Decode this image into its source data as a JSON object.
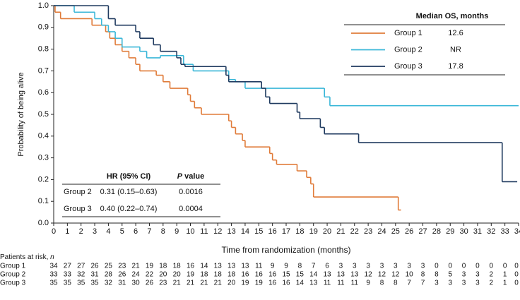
{
  "chart_data": {
    "type": "step",
    "ylabel": "Probability of being alive",
    "xlabel": "Time from randomization (months)",
    "xlim": [
      0,
      34
    ],
    "ylim": [
      0,
      1
    ],
    "xticks": [
      0,
      1,
      2,
      3,
      4,
      5,
      6,
      7,
      8,
      9,
      10,
      11,
      12,
      13,
      14,
      15,
      16,
      17,
      18,
      19,
      20,
      21,
      22,
      23,
      24,
      25,
      26,
      27,
      28,
      29,
      30,
      31,
      32,
      33,
      34
    ],
    "yticks": [
      {
        "value": 0,
        "label": "0.0"
      },
      0.1,
      0.2,
      0.3,
      0.4,
      0.5,
      0.6,
      0.7,
      0.8,
      0.9,
      {
        "value": 1,
        "label": "1.0"
      }
    ],
    "legend_title": "Median OS, months",
    "series": [
      {
        "name": "Group 1",
        "color": "#e07b39",
        "median": "12.6",
        "x": [
          0,
          0.1,
          0.5,
          2.8,
          3.8,
          4.1,
          4.5,
          5.0,
          5.5,
          6.0,
          6.3,
          7.5,
          8.0,
          8.5,
          9.8,
          10.0,
          10.3,
          10.8,
          12.8,
          13.0,
          13.3,
          13.8,
          14.0,
          15.8,
          16.0,
          16.3,
          17.8,
          18.5,
          18.8,
          19.0,
          25.2,
          25.4
        ],
        "values": [
          1.0,
          0.97,
          0.94,
          0.91,
          0.88,
          0.85,
          0.82,
          0.79,
          0.76,
          0.73,
          0.7,
          0.68,
          0.65,
          0.62,
          0.59,
          0.56,
          0.53,
          0.5,
          0.47,
          0.44,
          0.41,
          0.38,
          0.35,
          0.32,
          0.29,
          0.27,
          0.24,
          0.21,
          0.18,
          0.12,
          0.06,
          0.06
        ]
      },
      {
        "name": "Group 2",
        "color": "#3ab7d8",
        "median": "NR",
        "x": [
          0,
          1.5,
          3.0,
          3.5,
          4.0,
          4.5,
          5.0,
          6.3,
          6.8,
          7.8,
          9.5,
          10.2,
          12.8,
          13.3,
          14.0,
          19.8,
          20.2,
          34.0
        ],
        "values": [
          1.0,
          0.97,
          0.94,
          0.91,
          0.88,
          0.85,
          0.81,
          0.79,
          0.76,
          0.77,
          0.73,
          0.7,
          0.66,
          0.65,
          0.62,
          0.58,
          0.54,
          0.54
        ]
      },
      {
        "name": "Group 3",
        "color": "#1f3a5f",
        "median": "17.8",
        "x": [
          0,
          4.0,
          4.5,
          6.0,
          6.3,
          7.3,
          7.8,
          9.0,
          9.3,
          9.6,
          12.6,
          12.8,
          15.2,
          15.5,
          15.8,
          17.8,
          18.0,
          19.5,
          19.8,
          22.3,
          32.8,
          33.9
        ],
        "values": [
          1.0,
          0.94,
          0.91,
          0.88,
          0.85,
          0.82,
          0.79,
          0.76,
          0.73,
          0.72,
          0.68,
          0.65,
          0.62,
          0.58,
          0.55,
          0.51,
          0.48,
          0.44,
          0.41,
          0.37,
          0.19,
          0.19
        ]
      }
    ],
    "hr_table": {
      "headers": [
        "HR (95% CI)",
        "P",
        " value"
      ],
      "rows": [
        [
          "Group 2",
          "0.31 (0.15–0.63)",
          "0.0016"
        ],
        [
          "Group 3",
          "0.40 (0.22–0.74)",
          "0.0004"
        ]
      ]
    },
    "risk_table": {
      "title": "Patients at risk, ",
      "title_italic": "n",
      "rows": [
        {
          "name": "Group 1",
          "values": [
            34,
            27,
            27,
            26,
            25,
            23,
            21,
            19,
            18,
            18,
            16,
            14,
            13,
            13,
            13,
            11,
            9,
            9,
            8,
            7,
            6,
            3,
            3,
            3,
            3,
            3,
            3,
            3,
            0,
            0,
            0,
            0,
            0,
            0,
            0
          ]
        },
        {
          "name": "Group 2",
          "values": [
            33,
            33,
            32,
            31,
            28,
            26,
            24,
            22,
            20,
            20,
            19,
            18,
            18,
            18,
            16,
            16,
            16,
            15,
            15,
            14,
            13,
            13,
            13,
            12,
            12,
            12,
            10,
            8,
            8,
            5,
            3,
            3,
            2,
            1,
            0
          ]
        },
        {
          "name": "Group 3",
          "values": [
            35,
            35,
            35,
            35,
            32,
            31,
            30,
            26,
            23,
            21,
            21,
            21,
            21,
            20,
            19,
            19,
            16,
            16,
            14,
            13,
            11,
            11,
            11,
            9,
            8,
            8,
            7,
            7,
            3,
            3,
            3,
            3,
            2,
            1,
            0
          ]
        }
      ]
    }
  }
}
